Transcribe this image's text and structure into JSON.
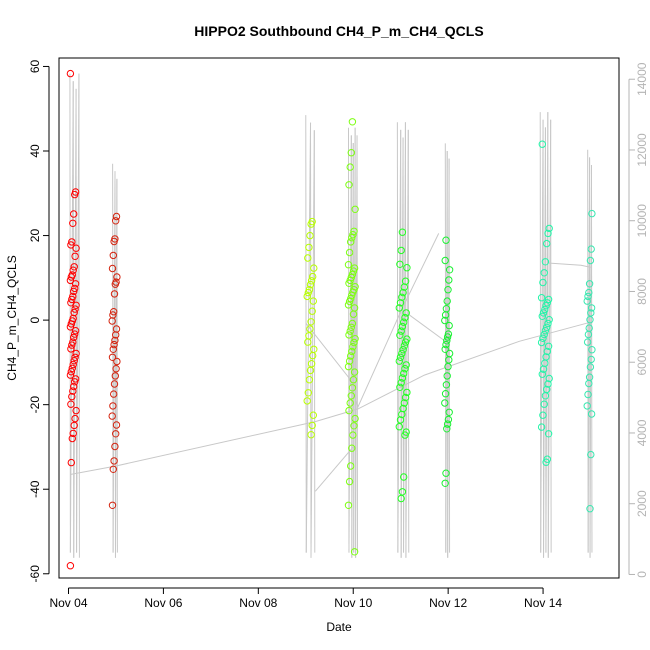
{
  "chart_data": {
    "type": "scatter",
    "title": "HIPPO2 Southbound CH4_P_m_CH4_QCLS",
    "xlabel": "Date",
    "ylabel": "CH4_P_m_CH4_QCLS",
    "x_ticks": [
      "Nov 04",
      "Nov 06",
      "Nov 08",
      "Nov 10",
      "Nov 12",
      "Nov 14"
    ],
    "y_ticks": [
      "-60",
      "-40",
      "-20",
      "0",
      "20",
      "40",
      "60"
    ],
    "y2_ticks": [
      "0",
      "2000",
      "4000",
      "6000",
      "8000",
      "10000",
      "12000",
      "14000"
    ],
    "xlim": [
      -0.2,
      11.6
    ],
    "ylim": [
      -61,
      62
    ],
    "y2lim": [
      -100,
      14600
    ],
    "colors": {
      "f1": "#ff0000",
      "f2": "#d4240f",
      "f3": "#b8ff00",
      "f4": "#7cff10",
      "f5": "#22ff22",
      "f6": "#18f030",
      "f7": "#22f5a8",
      "f8": "#38e8b0",
      "altitude_line": "#c8c8c8",
      "right_axis": "#b4b4b4"
    },
    "flights": [
      {
        "color_key": "f1",
        "x_center": 0.1,
        "x_spread": 0.06,
        "values": [
          58.3,
          30.3,
          29.7,
          25.1,
          22.9,
          18.5,
          17.8,
          17.0,
          15.1,
          12.6,
          11.8,
          10.7,
          10.2,
          9.4,
          8.6,
          7.5,
          6.8,
          5.6,
          4.9,
          4.1,
          3.5,
          2.6,
          1.8,
          0.4,
          -0.2,
          -0.9,
          -1.6,
          -2.5,
          -3.3,
          -4.1,
          -5.2,
          -5.9,
          -6.8,
          -7.9,
          -8.8,
          -9.6,
          -10.5,
          -11.4,
          -12.2,
          -13.0,
          -13.9,
          -14.6,
          -15.7,
          -16.8,
          -18.1,
          -19.9,
          -21.4,
          -23.3,
          -24.9,
          -26.8,
          -28.0,
          -33.7,
          -58.1
        ]
      },
      {
        "color_key": "f2",
        "x_center": 0.97,
        "x_spread": 0.05,
        "values": [
          24.5,
          23.5,
          19.2,
          18.6,
          15.3,
          12.2,
          10.2,
          9.0,
          8.5,
          6.2,
          2.0,
          1.2,
          -0.2,
          -2.1,
          -3.5,
          -4.8,
          -5.8,
          -6.9,
          -8.8,
          -9.8,
          -11.5,
          -13.2,
          -15.1,
          -17.5,
          -20.3,
          -22.7,
          -24.8,
          -26.9,
          -29.9,
          -33.3,
          -35.3,
          -43.8
        ]
      },
      {
        "color_key": "f3",
        "x_center": 5.1,
        "x_spread": 0.07,
        "values": [
          23.3,
          22.7,
          20.0,
          17.2,
          14.7,
          12.3,
          10.3,
          9.3,
          8.4,
          7.2,
          6.5,
          5.6,
          4.5,
          2.1,
          -0.4,
          -2.1,
          -3.7,
          -5.2,
          -6.9,
          -8.4,
          -10.3,
          -11.9,
          -14.1,
          -17.2,
          -19.1,
          -22.5,
          -24.9,
          -27.1
        ]
      },
      {
        "color_key": "f4",
        "x_center": 5.97,
        "x_spread": 0.07,
        "values": [
          46.9,
          39.6,
          36.2,
          32.0,
          26.2,
          21.0,
          20.2,
          19.5,
          18.5,
          16.0,
          13.1,
          12.3,
          11.6,
          10.8,
          10.1,
          9.4,
          8.7,
          7.9,
          7.2,
          6.6,
          5.9,
          5.1,
          4.4,
          3.6,
          2.9,
          1.4,
          -0.8,
          -1.7,
          -2.6,
          -3.5,
          -4.4,
          -5.3,
          -6.3,
          -7.4,
          -8.5,
          -9.7,
          -11.0,
          -12.3,
          -14.1,
          -16.0,
          -17.9,
          -19.6,
          -21.4,
          -23.3,
          -25.0,
          -27.2,
          -30.3,
          -34.5,
          -38.2,
          -43.8,
          -54.8
        ]
      },
      {
        "color_key": "f5",
        "x_center": 7.05,
        "x_spread": 0.08,
        "values": [
          20.8,
          16.5,
          13.2,
          12.4,
          9.2,
          7.8,
          6.5,
          5.4,
          4.1,
          2.9,
          1.7,
          0.6,
          -0.5,
          -1.5,
          -2.6,
          -3.6,
          -4.5,
          -5.2,
          -6.1,
          -7.0,
          -7.9,
          -8.8,
          -9.7,
          -10.6,
          -11.5,
          -12.6,
          -13.7,
          -14.8,
          -15.9,
          -17.1,
          -18.3,
          -19.6,
          -20.9,
          -22.3,
          -23.6,
          -25.2,
          -26.5,
          -27.2,
          -37.1,
          -40.6,
          -42.2
        ]
      },
      {
        "color_key": "f6",
        "x_center": 7.98,
        "x_spread": 0.05,
        "values": [
          18.9,
          14.1,
          11.9,
          9.5,
          7.2,
          4.5,
          2.7,
          1.2,
          -0.1,
          -1.3,
          -3.3,
          -4.0,
          -4.9,
          -5.8,
          -6.9,
          -7.9,
          -9.4,
          -11.0,
          -13.2,
          -15.3,
          -17.4,
          -19.6,
          -21.8,
          -23.5,
          -24.6,
          -25.7,
          -36.2,
          -38.6
        ]
      },
      {
        "color_key": "f7",
        "x_center": 10.05,
        "x_spread": 0.08,
        "values": [
          41.6,
          21.7,
          20.5,
          18.1,
          13.8,
          11.2,
          8.9,
          5.3,
          4.9,
          4.1,
          3.4,
          2.5,
          1.7,
          0.9,
          0.1,
          -0.8,
          -1.7,
          -2.5,
          -3.4,
          -4.3,
          -5.3,
          -6.2,
          -7.4,
          -8.7,
          -10.2,
          -11.6,
          -12.8,
          -13.8,
          -15.1,
          -16.4,
          -17.9,
          -19.9,
          -22.5,
          -25.3,
          -26.9,
          -32.9,
          -33.6
        ]
      },
      {
        "color_key": "f8",
        "x_center": 10.98,
        "x_spread": 0.05,
        "values": [
          25.2,
          16.8,
          14.1,
          8.6,
          6.5,
          5.6,
          4.5,
          2.9,
          1.7,
          0.1,
          -1.9,
          -3.4,
          -5.2,
          -7.0,
          -9.3,
          -11.1,
          -13.5,
          -15.0,
          -17.6,
          -20.3,
          -22.2,
          -31.8,
          -44.6
        ]
      }
    ],
    "altitude_profile": [
      {
        "x_center": 0.13,
        "spikes": [
          0.03,
          0.1,
          0.16,
          0.22
        ],
        "top_tilt": 58.3
      },
      {
        "x_center": 0.98,
        "spikes": [
          0.93,
          0.98,
          1.02
        ],
        "top_tilt": 37.0
      },
      {
        "x_center": 5.08,
        "spikes": [
          5.0,
          5.1,
          5.18
        ],
        "top_tilt": 48.5
      },
      {
        "x_center": 5.98,
        "spikes": [
          5.9,
          5.96,
          6.0,
          6.04,
          6.08
        ],
        "top_tilt": 45.5
      },
      {
        "x_center": 7.05,
        "spikes": [
          6.93,
          7.0,
          7.05,
          7.1,
          7.16
        ],
        "top_tilt": 46.8
      },
      {
        "x_center": 7.97,
        "spikes": [
          7.94,
          7.98,
          8.02
        ],
        "top_tilt": 41.8
      },
      {
        "x_center": 10.05,
        "spikes": [
          9.94,
          10.0,
          10.05,
          10.1,
          10.16
        ],
        "top_tilt": 49.2
      },
      {
        "x_center": 10.97,
        "spikes": [
          10.94,
          10.98,
          11.02
        ],
        "top_tilt": 40.3
      }
    ],
    "transit_lines": [
      [
        [
          0.05,
          -36.5
        ],
        [
          1.0,
          -34.5
        ],
        [
          5.2,
          -24.0
        ],
        [
          6.1,
          -21.0
        ],
        [
          7.5,
          -13.0
        ],
        [
          9.5,
          -5.0
        ],
        [
          11.0,
          -0.5
        ]
      ],
      [
        [
          5.0,
          -0.7
        ],
        [
          5.9,
          -13.5
        ],
        [
          6.1,
          -20.5
        ],
        [
          7.0,
          2.0
        ],
        [
          7.8,
          20.5
        ]
      ],
      [
        [
          10.1,
          13.5
        ],
        [
          10.8,
          13.0
        ],
        [
          11.0,
          12.5
        ]
      ],
      [
        [
          5.2,
          -40.5
        ],
        [
          6.0,
          -30.0
        ]
      ],
      [
        [
          7.15,
          1.5
        ],
        [
          8.0,
          -5.5
        ]
      ]
    ]
  }
}
